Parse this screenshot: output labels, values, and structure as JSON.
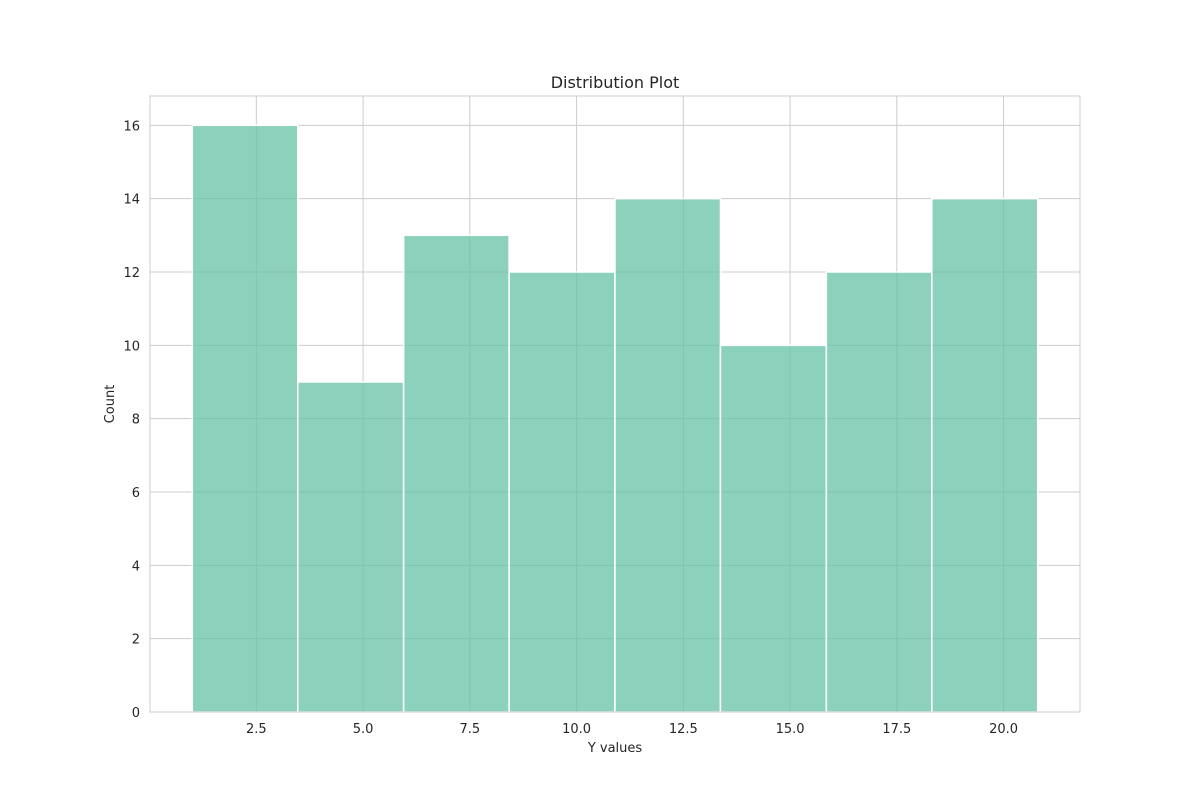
{
  "chart_data": {
    "type": "bar",
    "title": "Distribution Plot",
    "xlabel": "Y values",
    "ylabel": "Count",
    "bins": [
      {
        "x0": 1.0,
        "x1": 3.47,
        "count": 16
      },
      {
        "x0": 3.47,
        "x1": 5.95,
        "count": 9
      },
      {
        "x0": 5.95,
        "x1": 8.42,
        "count": 13
      },
      {
        "x0": 8.42,
        "x1": 10.9,
        "count": 12
      },
      {
        "x0": 10.9,
        "x1": 13.37,
        "count": 14
      },
      {
        "x0": 13.37,
        "x1": 15.85,
        "count": 10
      },
      {
        "x0": 15.85,
        "x1": 18.32,
        "count": 12
      },
      {
        "x0": 18.32,
        "x1": 20.8,
        "count": 14
      }
    ],
    "xlim": [
      0.01,
      21.79
    ],
    "ylim": [
      0,
      16.8
    ],
    "x_ticks": [
      2.5,
      5.0,
      7.5,
      10.0,
      12.5,
      15.0,
      17.5,
      20.0
    ],
    "x_tick_labels": [
      "2.5",
      "5.0",
      "7.5",
      "10.0",
      "12.5",
      "15.0",
      "17.5",
      "20.0"
    ],
    "y_ticks": [
      0,
      2,
      4,
      6,
      8,
      10,
      12,
      14,
      16
    ],
    "y_tick_labels": [
      "0",
      "2",
      "4",
      "6",
      "8",
      "10",
      "12",
      "14",
      "16"
    ],
    "grid": true,
    "bar_color": "#66c2a5",
    "grid_color": "#cccccc",
    "text_color": "#262626"
  }
}
